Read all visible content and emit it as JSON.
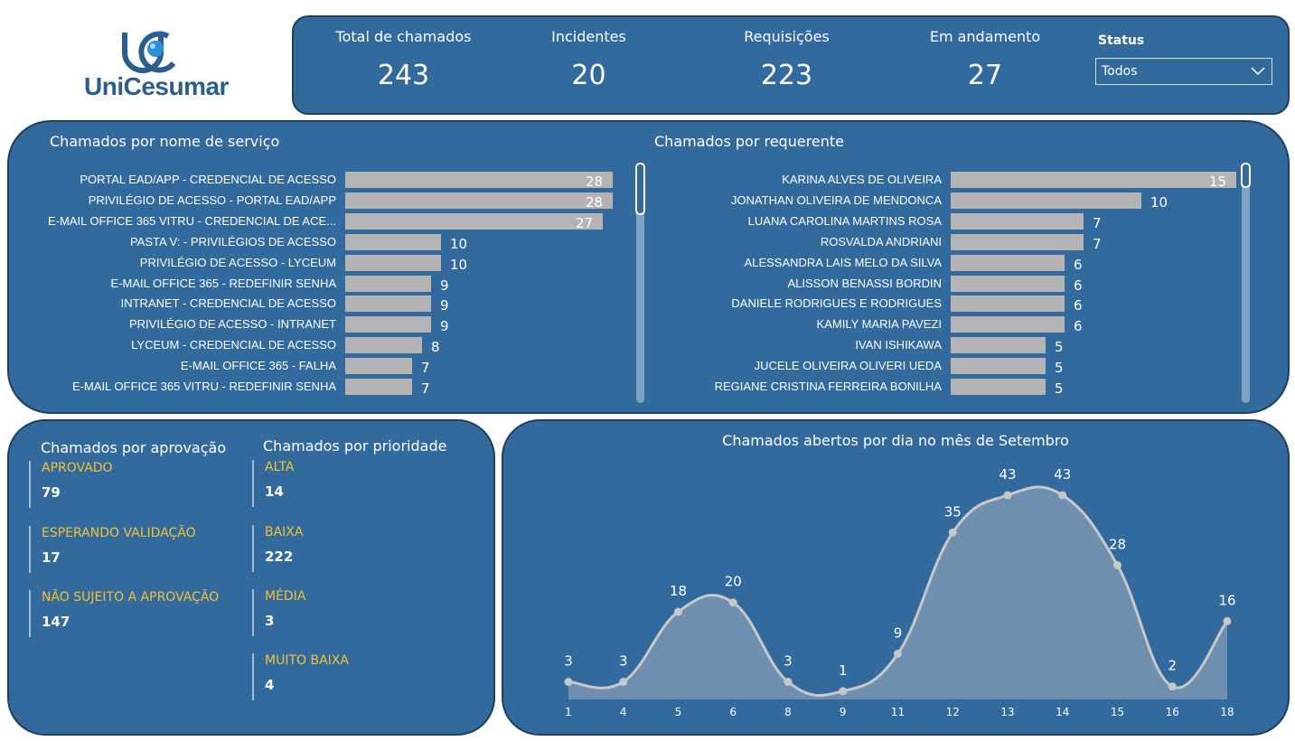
{
  "logo": {
    "text": "UniCesumar",
    "icon": "unicesumar-logo-icon"
  },
  "kpis": [
    {
      "label": "Total de chamados",
      "value": "243"
    },
    {
      "label": "Incidentes",
      "value": "20"
    },
    {
      "label": "Requisições",
      "value": "223"
    },
    {
      "label": "Em andamento",
      "value": "27"
    }
  ],
  "status_filter": {
    "title": "Status",
    "value": "Todos",
    "icon": "chevron-down-icon"
  },
  "service_chart": {
    "title": "Chamados por nome de serviço",
    "bar_color": "#b4b4b4",
    "max": 28,
    "items": [
      {
        "label": "PORTAL EAD/APP - CREDENCIAL DE ACESSO",
        "value": 28
      },
      {
        "label": "PRIVILÉGIO DE ACESSO - PORTAL EAD/APP",
        "value": 28
      },
      {
        "label": "E-MAIL OFFICE 365 VITRU - CREDENCIAL DE ACE...",
        "value": 27
      },
      {
        "label": "PASTA V: - PRIVILÉGIOS DE ACESSO",
        "value": 10
      },
      {
        "label": "PRIVILÉGIO DE ACESSO - LYCEUM",
        "value": 10
      },
      {
        "label": "E-MAIL OFFICE 365 - REDEFINIR SENHA",
        "value": 9
      },
      {
        "label": "INTRANET - CREDENCIAL DE ACESSO",
        "value": 9
      },
      {
        "label": "PRIVILÉGIO DE ACESSO - INTRANET",
        "value": 9
      },
      {
        "label": "LYCEUM - CREDENCIAL DE ACESSO",
        "value": 8
      },
      {
        "label": "E-MAIL OFFICE 365 - FALHA",
        "value": 7
      },
      {
        "label": "E-MAIL OFFICE 365 VITRU - REDEFINIR SENHA",
        "value": 7
      }
    ]
  },
  "requester_chart": {
    "title": "Chamados por requerente",
    "bar_color": "#b4b4b4",
    "max": 15,
    "items": [
      {
        "label": "KARINA ALVES DE OLIVEIRA",
        "value": 15
      },
      {
        "label": "JONATHAN OLIVEIRA DE MENDONCA",
        "value": 10
      },
      {
        "label": "LUANA CAROLINA MARTINS ROSA",
        "value": 7
      },
      {
        "label": "ROSVALDA ANDRIANI",
        "value": 7
      },
      {
        "label": "ALESSANDRA LAIS MELO DA SILVA",
        "value": 6
      },
      {
        "label": "ALISSON BENASSI BORDIN",
        "value": 6
      },
      {
        "label": "DANIELE RODRIGUES E RODRIGUES",
        "value": 6
      },
      {
        "label": "KAMILY MARIA PAVEZI",
        "value": 6
      },
      {
        "label": "IVAN ISHIKAWA",
        "value": 5
      },
      {
        "label": "JUCELE OLIVEIRA OLIVERI UEDA",
        "value": 5
      },
      {
        "label": "REGIANE CRISTINA FERREIRA BONILHA",
        "value": 5
      }
    ]
  },
  "approval": {
    "title": "Chamados por aprovação",
    "items": [
      {
        "label": "APROVADO",
        "value": "79"
      },
      {
        "label": "ESPERANDO VALIDAÇÃO",
        "value": "17"
      },
      {
        "label": "NÃO SUJEITO A APROVAÇÃO",
        "value": "147"
      }
    ]
  },
  "priority": {
    "title": "Chamados por prioridade",
    "items": [
      {
        "label": "ALTA",
        "value": "14"
      },
      {
        "label": "BAIXA",
        "value": "222"
      },
      {
        "label": "MÉDIA",
        "value": "3"
      },
      {
        "label": "MUITO BAIXA",
        "value": "4"
      }
    ]
  },
  "colors": {
    "panel": "#336a9e",
    "panel_border": "#1f3f5f",
    "accent_label": "#f2c234",
    "bar": "#b4b4b4",
    "line": "#c8c8c8",
    "area": "#6f8fb0"
  },
  "chart_data": {
    "type": "area",
    "title": "Chamados abertos por dia no mês de Setembro",
    "x": [
      "1",
      "4",
      "5",
      "6",
      "8",
      "9",
      "11",
      "12",
      "13",
      "14",
      "15",
      "16",
      "18"
    ],
    "values": [
      3,
      3,
      18,
      20,
      3,
      1,
      9,
      35,
      43,
      43,
      28,
      2,
      16
    ],
    "xlabel": "",
    "ylabel": "",
    "ylim": [
      0,
      43
    ],
    "grid": false,
    "legend": "none"
  }
}
